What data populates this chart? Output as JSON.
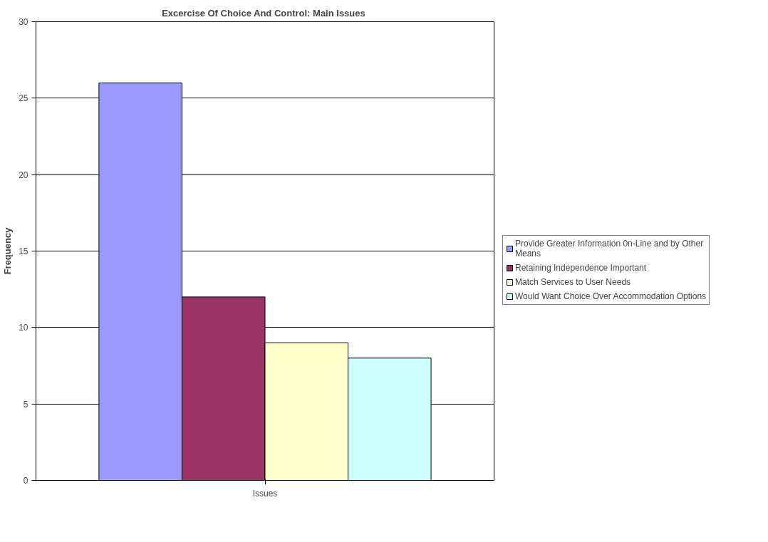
{
  "chart_data": {
    "type": "bar",
    "title": "Excercise Of Choice And Control:  Main Issues",
    "ylabel": "Frequency",
    "categories": [
      "Issues"
    ],
    "series": [
      {
        "name": "Provide Greater Information 0n-Line and by Other Means",
        "color": "#9999ff",
        "values": [
          26
        ]
      },
      {
        "name": "Retaining Independence Important",
        "color": "#993366",
        "values": [
          12
        ]
      },
      {
        "name": "Match Services to User Needs",
        "color": "#ffffcc",
        "values": [
          9
        ]
      },
      {
        "name": "Would Want Choice Over Accommodation Options",
        "color": "#ccffff",
        "values": [
          8
        ]
      }
    ],
    "ylim": [
      0,
      30
    ],
    "yticks": [
      0,
      5,
      10,
      15,
      20,
      25,
      30
    ],
    "grid": "y",
    "legend": "right"
  }
}
